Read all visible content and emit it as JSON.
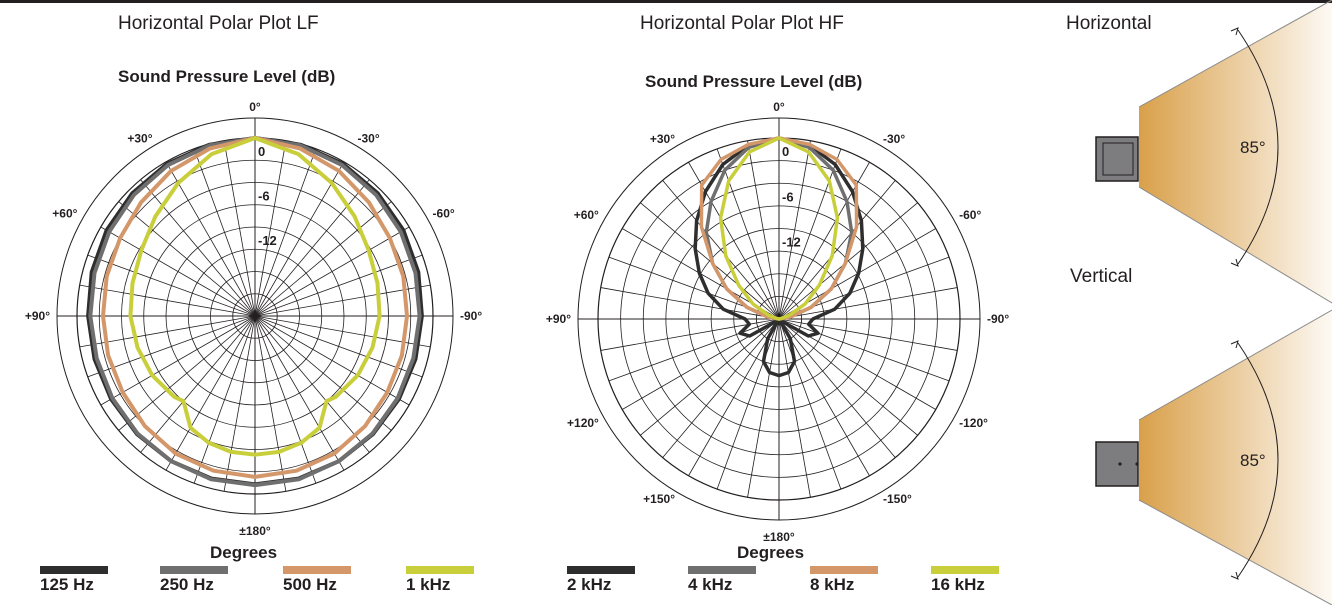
{
  "titles": {
    "lf": "Horizontal Polar Plot LF",
    "hf": "Horizontal Polar Plot HF",
    "horizontal": "Horizontal",
    "vertical": "Vertical"
  },
  "colors": {
    "c125": "#2e2e2e",
    "c250": "#6f6f70",
    "c500": "#d3976a",
    "c1k": "#c9ce3b",
    "c2k": "#2e2e2e",
    "c4k": "#6f6f70",
    "c8k": "#d3976a",
    "c16k": "#c9ce3b",
    "cone": "#d9a04a",
    "box": "#7d7d7f"
  },
  "dispersion": {
    "horizontal_label": "85°",
    "vertical_label": "85°"
  },
  "chart_data": [
    {
      "type": "polar",
      "title": "Horizontal Polar Plot LF",
      "subtitle": "Sound Pressure Level (dB)",
      "xlabel": "Degrees",
      "radial_ticks": [
        "0",
        "-6",
        "-12"
      ],
      "radial_range_db": [
        -24,
        0
      ],
      "angle_labels": [
        "0°",
        "+30°",
        "-30°",
        "+60°",
        "-60°",
        "+90°",
        "-90°",
        "±180°"
      ],
      "series": [
        {
          "name": "125 Hz",
          "angles": [
            0,
            15,
            30,
            45,
            60,
            75,
            90,
            105,
            120,
            135,
            150,
            165,
            180
          ],
          "values": [
            0,
            -0.1,
            -0.3,
            -0.6,
            -0.9,
            -1.2,
            -1.5,
            -1.6,
            -1.6,
            -1.5,
            -1.4,
            -1.3,
            -1.3
          ]
        },
        {
          "name": "250 Hz",
          "angles": [
            0,
            15,
            30,
            45,
            60,
            75,
            90,
            105,
            120,
            135,
            150,
            165,
            180
          ],
          "values": [
            0,
            -0.2,
            -0.5,
            -0.9,
            -1.3,
            -1.6,
            -1.8,
            -1.9,
            -1.8,
            -1.6,
            -1.4,
            -1.2,
            -1.2
          ]
        },
        {
          "name": "500 Hz",
          "angles": [
            0,
            15,
            30,
            45,
            60,
            75,
            90,
            105,
            120,
            135,
            150,
            165,
            180
          ],
          "values": [
            0,
            -0.6,
            -1.4,
            -2.3,
            -3.0,
            -3.3,
            -3.5,
            -3.5,
            -3.4,
            -3.0,
            -2.6,
            -2.4,
            -2.3
          ]
        },
        {
          "name": "1 kHz",
          "angles": [
            0,
            15,
            30,
            45,
            60,
            75,
            90,
            105,
            120,
            135,
            140,
            150,
            160,
            170,
            180
          ],
          "values": [
            0,
            -1.4,
            -3.3,
            -5.0,
            -6.3,
            -6.9,
            -7.2,
            -7.6,
            -8.0,
            -8.6,
            -9.0,
            -6.6,
            -5.8,
            -5.4,
            -5.3
          ]
        }
      ]
    },
    {
      "type": "polar",
      "title": "Horizontal Polar Plot HF",
      "subtitle": "Sound Pressure Level (dB)",
      "xlabel": "Degrees",
      "radial_ticks": [
        "0",
        "-6",
        "-12"
      ],
      "radial_range_db": [
        -24,
        0
      ],
      "angle_labels": [
        "0°",
        "+30°",
        "-30°",
        "+60°",
        "-60°",
        "+90°",
        "-90°",
        "+120°",
        "-120°",
        "+150°",
        "-150°",
        "±180°"
      ],
      "series": [
        {
          "name": "2 kHz",
          "angles": [
            0,
            10,
            20,
            30,
            40,
            50,
            60,
            70,
            80,
            90,
            100,
            110,
            120,
            130,
            140,
            150,
            160,
            170,
            180
          ],
          "values": [
            0,
            -0.6,
            -2.2,
            -4.5,
            -7.0,
            -9.5,
            -11.8,
            -14.0,
            -16.5,
            -19.5,
            -20.0,
            -18.5,
            -19.5,
            -23.5,
            -24.0,
            -21.0,
            -18.0,
            -16.8,
            -16.5
          ]
        },
        {
          "name": "4 kHz",
          "angles": [
            0,
            10,
            20,
            30,
            40,
            50,
            60,
            70,
            80,
            90,
            180
          ],
          "values": [
            0,
            -0.9,
            -3.0,
            -6.0,
            -9.0,
            -12.5,
            -16.0,
            -19.5,
            -22.5,
            -24.0,
            -24.0
          ]
        },
        {
          "name": "8 kHz",
          "angles": [
            0,
            10,
            20,
            30,
            40,
            50,
            60,
            70,
            80,
            90,
            180
          ],
          "values": [
            0,
            -0.5,
            -1.5,
            -3.5,
            -8.0,
            -12.5,
            -16.0,
            -19.5,
            -22.5,
            -24.0,
            -24.0
          ]
        },
        {
          "name": "16 kHz",
          "angles": [
            0,
            10,
            20,
            30,
            40,
            50,
            60,
            70,
            80,
            90,
            180
          ],
          "values": [
            0,
            -1.5,
            -4.5,
            -8.5,
            -13.0,
            -17.0,
            -20.0,
            -22.5,
            -23.8,
            -24.0,
            -24.0
          ]
        }
      ]
    }
  ]
}
